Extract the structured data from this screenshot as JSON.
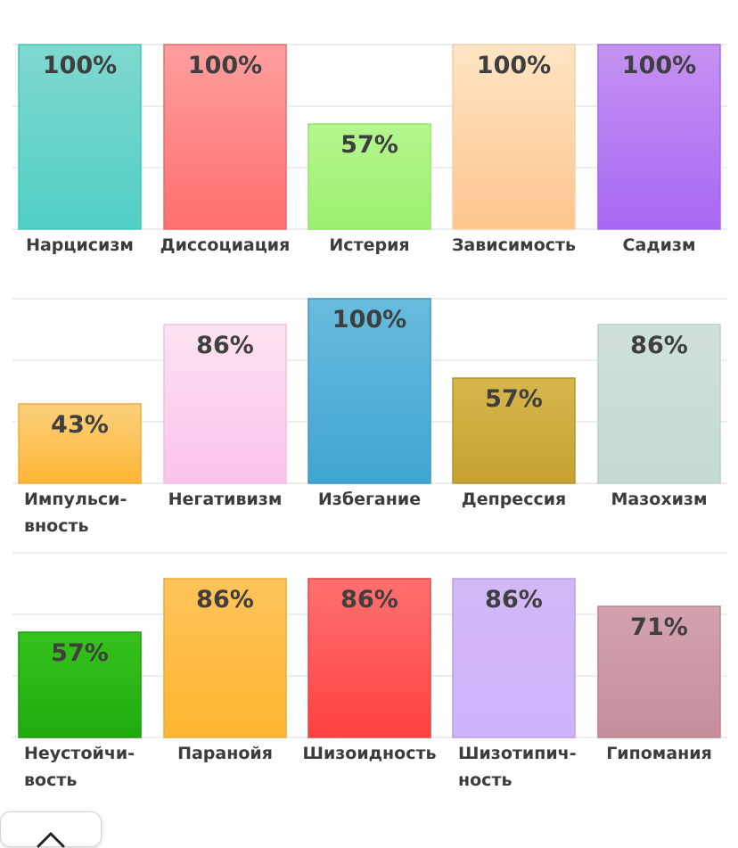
{
  "chart_data": [
    {
      "type": "bar",
      "ylim": [
        0,
        100
      ],
      "grid": true,
      "value_format": "percent",
      "categories": [
        [
          "Нарцисизм"
        ],
        [
          "Диссоциация"
        ],
        [
          "Истерия"
        ],
        [
          "Зависимость"
        ],
        [
          "Садизм"
        ]
      ],
      "values": [
        100,
        100,
        57,
        100,
        100
      ],
      "colors": [
        [
          "#80d8d0",
          "#50cfc5",
          "#45c6bc"
        ],
        [
          "#ff9f9f",
          "#ff6e6e",
          "#ee6a6a"
        ],
        [
          "#b4f78e",
          "#9cf06e",
          "#92e66a"
        ],
        [
          "#ffe5c4",
          "#ffc58e",
          "#f6cfa2"
        ],
        [
          "#c592f2",
          "#a867f2",
          "#a56ae8"
        ]
      ]
    },
    {
      "type": "bar",
      "ylim": [
        0,
        100
      ],
      "grid": true,
      "value_format": "percent",
      "categories": [
        [
          "Импульси-",
          "вность"
        ],
        [
          "Негативизм"
        ],
        [
          "Избегание"
        ],
        [
          "Депрессия"
        ],
        [
          "Мазохизм"
        ]
      ],
      "values": [
        43,
        86,
        100,
        57,
        86
      ],
      "colors": [
        [
          "#fcd07c",
          "#ffb637",
          "#e8ad3e"
        ],
        [
          "#fde2f1",
          "#fbc3ec",
          "#f2bfe2"
        ],
        [
          "#68bcde",
          "#40a5d2",
          "#3c98c6"
        ],
        [
          "#d6b74c",
          "#c6a130",
          "#b59327"
        ],
        [
          "#cfe0da",
          "#c4dbd3",
          "#b9d1c8"
        ]
      ]
    },
    {
      "type": "bar",
      "ylim": [
        0,
        100
      ],
      "grid": true,
      "value_format": "percent",
      "categories": [
        [
          "Неустойчи-",
          "вость"
        ],
        [
          "Паранойя"
        ],
        [
          "Шизоидность"
        ],
        [
          "Шизотипич-",
          "ность"
        ],
        [
          "Гипомания"
        ]
      ],
      "values": [
        57,
        86,
        86,
        86,
        71
      ],
      "colors": [
        [
          "#36c21b",
          "#20ab10",
          "#189a0d"
        ],
        [
          "#fdc45a",
          "#ffb52f",
          "#ecaa36"
        ],
        [
          "#ff7070",
          "#ff4040",
          "#e84646"
        ],
        [
          "#d3b8f7",
          "#d0b4fb",
          "#bb9de8"
        ],
        [
          "#d3a2ae",
          "#c68d9b",
          "#b98391"
        ]
      ]
    }
  ],
  "close_icon": "close-chevron-icon"
}
